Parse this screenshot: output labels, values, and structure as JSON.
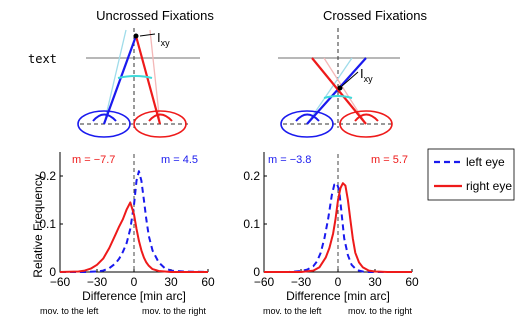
{
  "schematics": {
    "uncrossed_title": "Uncrossed Fixations",
    "crossed_title": "Crossed Fixations",
    "text_label": "text",
    "ixy_main": "I",
    "ixy_sub": "xy"
  },
  "colors": {
    "left_eye": "#1a1aee",
    "right_eye": "#ee1a1a",
    "cyan": "#40dada",
    "gray": "#b8b8b8"
  },
  "captions": {
    "left_panel": [
      "mov. to the left",
      "mov. to the right"
    ],
    "right_panel": [
      "mov. to the left",
      "mov. to the right"
    ]
  },
  "legend": [
    "left eye",
    "right eye"
  ],
  "chart_data": [
    {
      "type": "line",
      "title": "",
      "xlabel": "Difference [min arc]",
      "ylabel": "Relative Frequency",
      "xlim": [
        -60,
        60
      ],
      "ylim": [
        0,
        0.25
      ],
      "xticks": [
        -60,
        -30,
        0,
        30,
        60
      ],
      "yticks": [
        0,
        0.1,
        0.2
      ],
      "annotations": [
        {
          "text": "m = −7.7",
          "series": "right eye"
        },
        {
          "text": "m = 4.5",
          "series": "left eye"
        }
      ],
      "series": [
        {
          "name": "left eye",
          "style": "dashed",
          "x": [
            -60,
            -40,
            -30,
            -25,
            -20,
            -15,
            -12,
            -9,
            -6,
            -3,
            0,
            2,
            4,
            6,
            8,
            10,
            12,
            15,
            20,
            25,
            30,
            40,
            60
          ],
          "y": [
            0,
            0,
            0.001,
            0.003,
            0.008,
            0.018,
            0.028,
            0.042,
            0.06,
            0.09,
            0.14,
            0.19,
            0.21,
            0.19,
            0.15,
            0.11,
            0.075,
            0.045,
            0.02,
            0.008,
            0.003,
            0.001,
            0
          ]
        },
        {
          "name": "right eye",
          "style": "solid",
          "x": [
            -60,
            -45,
            -40,
            -35,
            -30,
            -25,
            -20,
            -15,
            -12,
            -9,
            -6,
            -3,
            0,
            2,
            4,
            6,
            8,
            10,
            12,
            15,
            20,
            25,
            30,
            40,
            60
          ],
          "y": [
            0,
            0.001,
            0.003,
            0.007,
            0.015,
            0.028,
            0.05,
            0.078,
            0.095,
            0.11,
            0.13,
            0.145,
            0.12,
            0.09,
            0.065,
            0.045,
            0.03,
            0.02,
            0.013,
            0.006,
            0.002,
            0.001,
            0,
            0,
            0
          ]
        }
      ]
    },
    {
      "type": "line",
      "title": "",
      "xlabel": "Difference [min arc]",
      "ylabel": "",
      "xlim": [
        -60,
        60
      ],
      "ylim": [
        0,
        0.25
      ],
      "xticks": [
        -60,
        -30,
        0,
        30,
        60
      ],
      "yticks": [
        0,
        0.1,
        0.2
      ],
      "annotations": [
        {
          "text": "m = −3.8",
          "series": "left eye"
        },
        {
          "text": "m = 5.7",
          "series": "right eye"
        }
      ],
      "series": [
        {
          "name": "left eye",
          "style": "dashed",
          "x": [
            -60,
            -40,
            -30,
            -25,
            -20,
            -17,
            -14,
            -11,
            -8,
            -5,
            -3,
            -1,
            1,
            3,
            5,
            8,
            11,
            14,
            17,
            20,
            25,
            30,
            40,
            60
          ],
          "y": [
            0,
            0,
            0.002,
            0.005,
            0.012,
            0.022,
            0.04,
            0.07,
            0.11,
            0.16,
            0.182,
            0.185,
            0.17,
            0.12,
            0.07,
            0.035,
            0.015,
            0.007,
            0.003,
            0.001,
            0,
            0,
            0,
            0
          ]
        },
        {
          "name": "right eye",
          "style": "solid",
          "x": [
            -60,
            -40,
            -30,
            -20,
            -15,
            -10,
            -7,
            -4,
            -2,
            0,
            2,
            4,
            6,
            8,
            10,
            12,
            14,
            17,
            20,
            25,
            30,
            40,
            60
          ],
          "y": [
            0,
            0,
            0,
            0.003,
            0.01,
            0.03,
            0.05,
            0.08,
            0.11,
            0.15,
            0.175,
            0.185,
            0.18,
            0.15,
            0.11,
            0.07,
            0.04,
            0.02,
            0.01,
            0.003,
            0.001,
            0,
            0
          ]
        }
      ]
    }
  ]
}
